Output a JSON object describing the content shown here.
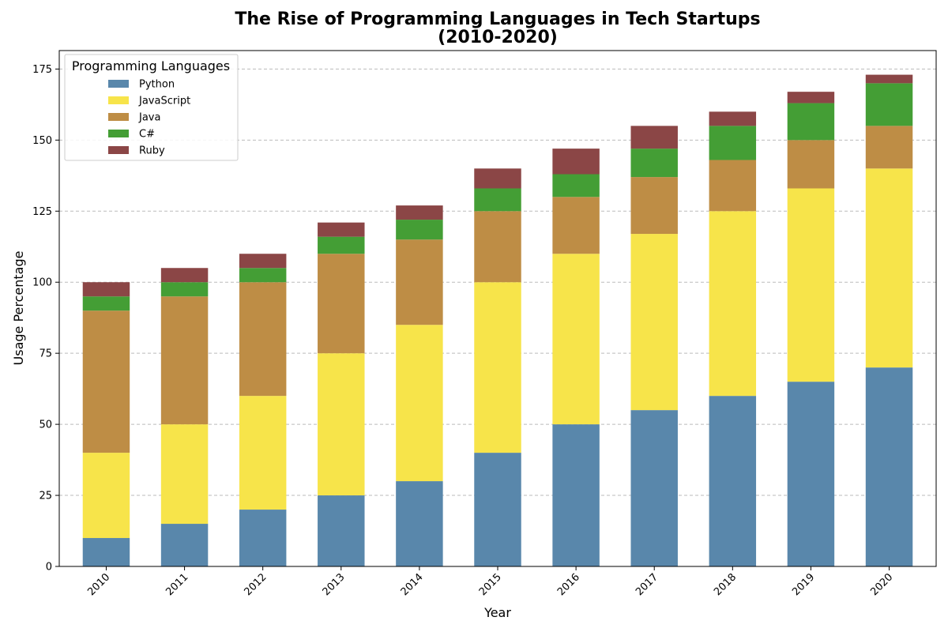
{
  "chart_data": {
    "type": "bar",
    "stacked": true,
    "title_lines": [
      "The Rise of Programming Languages in Tech Startups",
      "(2010-2020)"
    ],
    "xlabel": "Year",
    "ylabel": "Usage Percentage",
    "categories": [
      "2010",
      "2011",
      "2012",
      "2013",
      "2014",
      "2015",
      "2016",
      "2017",
      "2018",
      "2019",
      "2020"
    ],
    "ylim": [
      0,
      181.5
    ],
    "yticks": [
      0,
      25,
      50,
      75,
      100,
      125,
      150,
      175
    ],
    "grid": "y-dashed",
    "legend": {
      "title": "Programming Languages",
      "placement": "top-left"
    },
    "series": [
      {
        "name": "Python",
        "color": "#5987ab",
        "values": [
          10,
          15,
          20,
          25,
          30,
          40,
          50,
          55,
          60,
          65,
          70
        ]
      },
      {
        "name": "JavaScript",
        "color": "#f7e44a",
        "values": [
          30,
          35,
          40,
          50,
          55,
          60,
          60,
          62,
          65,
          68,
          70
        ]
      },
      {
        "name": "Java",
        "color": "#be8d45",
        "values": [
          50,
          45,
          40,
          35,
          30,
          25,
          20,
          20,
          18,
          17,
          15
        ]
      },
      {
        "name": "C#",
        "color": "#449e35",
        "values": [
          5,
          5,
          5,
          6,
          7,
          8,
          8,
          10,
          12,
          13,
          15
        ]
      },
      {
        "name": "Ruby",
        "color": "#8b4646",
        "values": [
          5,
          5,
          5,
          5,
          5,
          7,
          9,
          8,
          5,
          4,
          3
        ]
      }
    ]
  }
}
